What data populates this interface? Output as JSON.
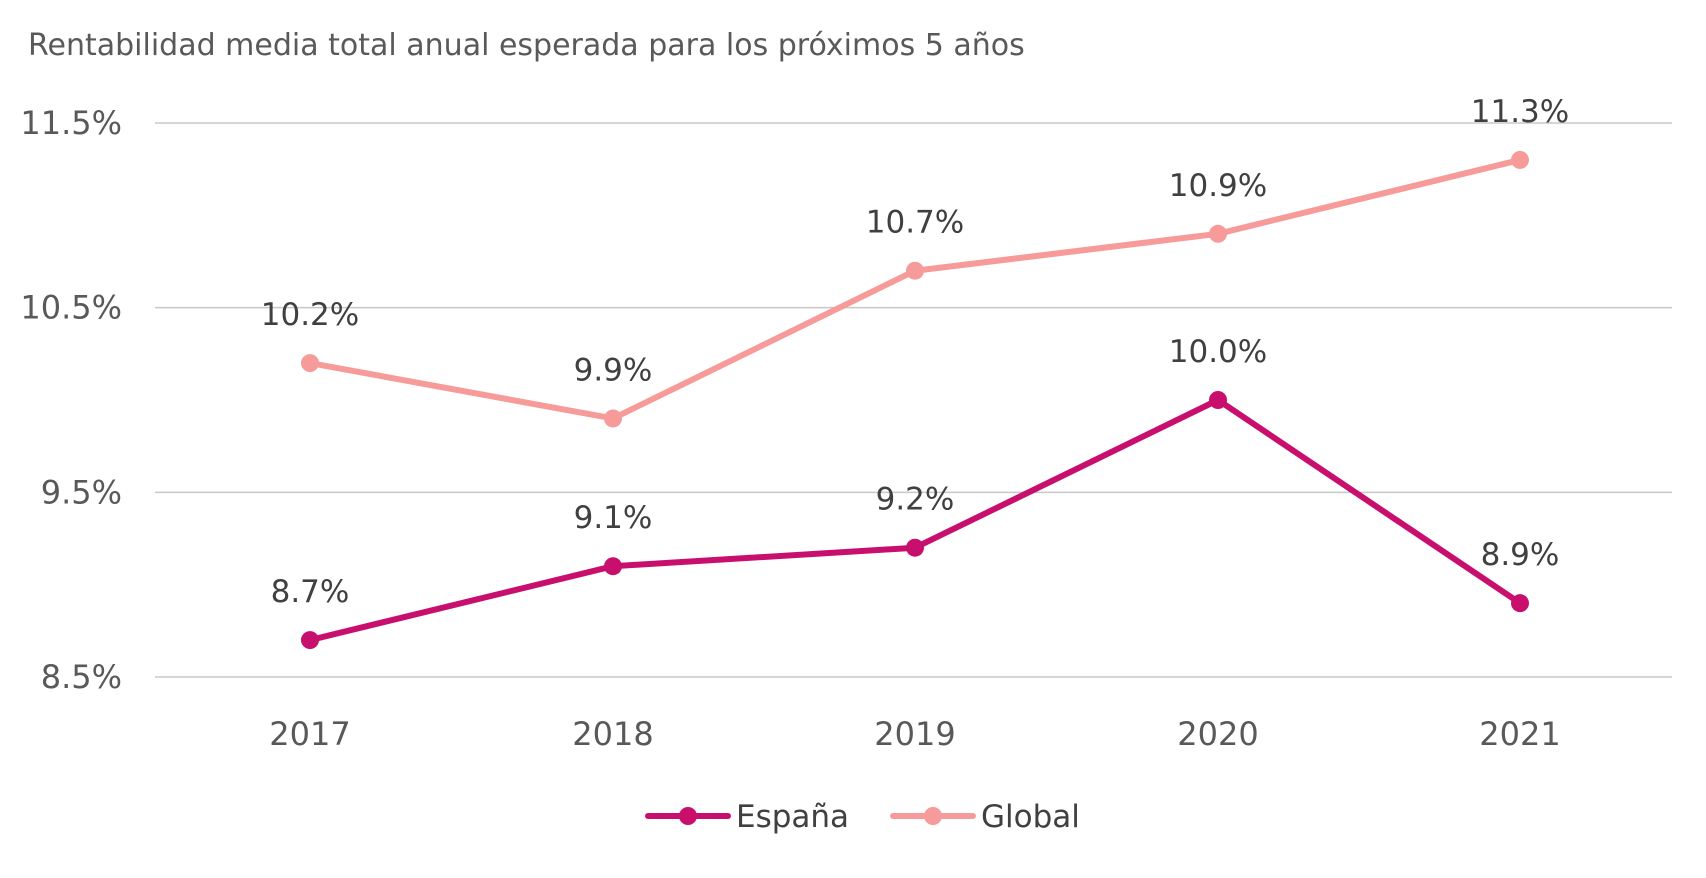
{
  "chart_data": {
    "type": "line",
    "title": "Rentabilidad  media total anual esperada para los próximos  5 años",
    "categories": [
      "2017",
      "2018",
      "2019",
      "2020",
      "2021"
    ],
    "ylim": [
      8.5,
      11.5
    ],
    "yticks": [
      {
        "value": 11.5,
        "label": "11.5%"
      },
      {
        "value": 10.5,
        "label": "10.5%"
      },
      {
        "value": 9.5,
        "label": "9.5%"
      },
      {
        "value": 8.5,
        "label": "8.5%"
      }
    ],
    "grid": true,
    "legend_position": "bottom",
    "series": [
      {
        "name": "España",
        "color": "#c80f6e",
        "values": [
          8.7,
          9.1,
          9.2,
          10.0,
          8.9
        ],
        "labels": [
          "8.7%",
          "9.1%",
          "9.2%",
          "10.0%",
          "8.9%"
        ]
      },
      {
        "name": "Global",
        "color": "#f79a9a",
        "values": [
          10.2,
          9.9,
          10.7,
          10.9,
          11.3
        ],
        "labels": [
          "10.2%",
          "9.9%",
          "10.7%",
          "10.9%",
          "11.3%"
        ]
      }
    ]
  }
}
